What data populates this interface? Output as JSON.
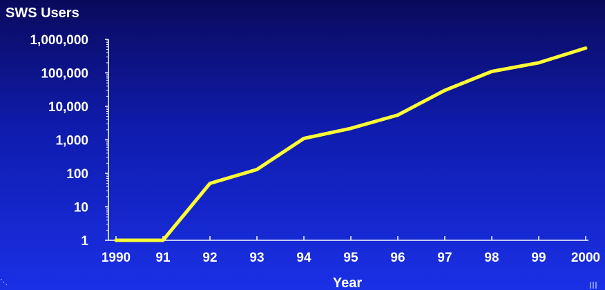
{
  "chart_data": {
    "type": "line",
    "title": "SWS Users",
    "xlabel": "Year",
    "ylabel": "",
    "yscale": "log",
    "ylim": [
      1,
      1000000
    ],
    "grid": false,
    "legend": "none",
    "categories": [
      "1990",
      "91",
      "92",
      "93",
      "94",
      "95",
      "96",
      "97",
      "98",
      "99",
      "2000"
    ],
    "ytick_labels": [
      "1",
      "10",
      "100",
      "1,000",
      "10,000",
      "100,000",
      "1,000,000"
    ],
    "series": [
      {
        "values": [
          1,
          1,
          50,
          130,
          1100,
          2200,
          5500,
          30000,
          110000,
          200000,
          550000
        ],
        "color": "#ffff33"
      }
    ],
    "colors": {
      "axis": "#ffffff",
      "text": "#ffffff",
      "line": "#ffff33"
    }
  }
}
